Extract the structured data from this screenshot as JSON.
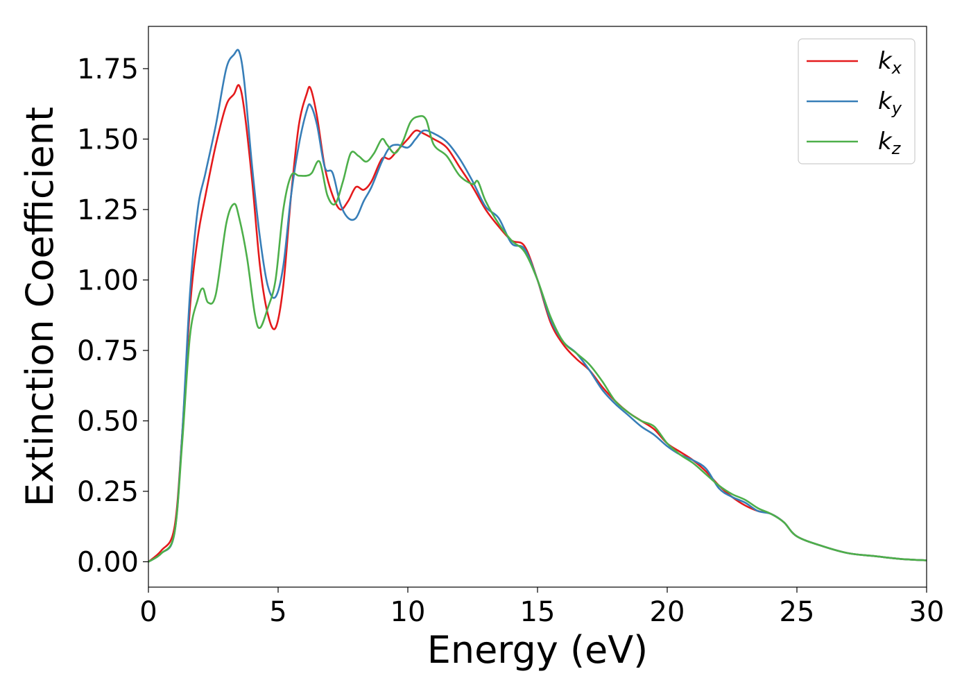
{
  "chart_data": {
    "type": "line",
    "title": "",
    "xlabel": "Energy (eV)",
    "ylabel": "Extinction Coefficient",
    "xlim": [
      0,
      30
    ],
    "ylim": [
      -0.09,
      1.9
    ],
    "xticks": [
      0,
      5,
      10,
      15,
      20,
      25,
      30
    ],
    "xtick_labels": [
      "0",
      "5",
      "10",
      "15",
      "20",
      "25",
      "30"
    ],
    "yticks": [
      0.0,
      0.25,
      0.5,
      0.75,
      1.0,
      1.25,
      1.5,
      1.75
    ],
    "ytick_labels": [
      "0.00",
      "0.25",
      "0.50",
      "0.75",
      "1.00",
      "1.25",
      "1.50",
      "1.75"
    ],
    "grid": false,
    "legend_position": "top-right",
    "series": [
      {
        "name": "k",
        "subscript": "x",
        "color": "#e41a1c",
        "x": [
          0,
          0.5,
          1.0,
          1.3,
          1.6,
          1.9,
          2.2,
          2.6,
          3.0,
          3.3,
          3.5,
          3.7,
          4.0,
          4.3,
          4.6,
          4.9,
          5.2,
          5.5,
          5.8,
          6.1,
          6.25,
          6.5,
          6.8,
          7.1,
          7.4,
          7.7,
          8.0,
          8.3,
          8.6,
          9.0,
          9.3,
          9.6,
          10.0,
          10.3,
          10.6,
          11.0,
          11.5,
          12.0,
          12.5,
          13.0,
          13.5,
          14.0,
          14.5,
          15.0,
          15.5,
          16.0,
          16.5,
          17.0,
          17.5,
          18.0,
          18.5,
          19.0,
          19.5,
          20.0,
          20.5,
          21.0,
          21.5,
          22.0,
          22.5,
          23.0,
          23.5,
          24.0,
          24.5,
          25.0,
          26.0,
          27.0,
          28.0,
          29.0,
          30.0
        ],
        "values": [
          0.0,
          0.04,
          0.12,
          0.45,
          0.9,
          1.15,
          1.3,
          1.48,
          1.62,
          1.66,
          1.69,
          1.6,
          1.35,
          1.05,
          0.88,
          0.83,
          0.98,
          1.3,
          1.55,
          1.66,
          1.68,
          1.58,
          1.4,
          1.3,
          1.25,
          1.28,
          1.33,
          1.32,
          1.35,
          1.43,
          1.43,
          1.46,
          1.5,
          1.53,
          1.52,
          1.5,
          1.47,
          1.4,
          1.33,
          1.25,
          1.19,
          1.14,
          1.12,
          1.0,
          0.85,
          0.77,
          0.72,
          0.68,
          0.62,
          0.57,
          0.53,
          0.5,
          0.47,
          0.42,
          0.39,
          0.36,
          0.32,
          0.27,
          0.23,
          0.2,
          0.18,
          0.17,
          0.14,
          0.09,
          0.055,
          0.03,
          0.02,
          0.01,
          0.005
        ]
      },
      {
        "name": "k",
        "subscript": "y",
        "color": "#377eb8",
        "x": [
          0,
          0.5,
          1.0,
          1.3,
          1.6,
          1.9,
          2.2,
          2.6,
          3.0,
          3.3,
          3.5,
          3.7,
          4.0,
          4.3,
          4.6,
          4.9,
          5.2,
          5.5,
          5.8,
          6.1,
          6.25,
          6.5,
          6.8,
          7.1,
          7.4,
          7.7,
          8.0,
          8.3,
          8.6,
          9.0,
          9.3,
          9.6,
          10.0,
          10.3,
          10.6,
          11.0,
          11.5,
          12.0,
          12.5,
          13.0,
          13.5,
          14.0,
          14.5,
          15.0,
          15.5,
          16.0,
          16.5,
          17.0,
          17.5,
          18.0,
          18.5,
          19.0,
          19.5,
          20.0,
          20.5,
          21.0,
          21.5,
          22.0,
          22.5,
          23.0,
          23.5,
          24.0,
          24.5,
          25.0,
          26.0,
          27.0,
          28.0,
          29.0,
          30.0
        ],
        "values": [
          0.0,
          0.03,
          0.1,
          0.45,
          0.95,
          1.25,
          1.38,
          1.55,
          1.75,
          1.8,
          1.81,
          1.7,
          1.4,
          1.15,
          0.98,
          0.94,
          1.05,
          1.3,
          1.48,
          1.6,
          1.62,
          1.55,
          1.4,
          1.38,
          1.27,
          1.22,
          1.22,
          1.28,
          1.33,
          1.42,
          1.47,
          1.48,
          1.47,
          1.5,
          1.53,
          1.52,
          1.49,
          1.43,
          1.35,
          1.26,
          1.22,
          1.13,
          1.11,
          1.0,
          0.86,
          0.78,
          0.74,
          0.68,
          0.61,
          0.56,
          0.52,
          0.48,
          0.45,
          0.41,
          0.38,
          0.36,
          0.33,
          0.26,
          0.23,
          0.21,
          0.18,
          0.17,
          0.14,
          0.09,
          0.055,
          0.03,
          0.02,
          0.01,
          0.005
        ]
      },
      {
        "name": "k",
        "subscript": "z",
        "color": "#4daf4a",
        "x": [
          0,
          0.5,
          1.0,
          1.3,
          1.6,
          1.9,
          2.1,
          2.3,
          2.6,
          3.0,
          3.3,
          3.5,
          3.8,
          4.1,
          4.3,
          4.6,
          4.9,
          5.2,
          5.5,
          5.8,
          6.1,
          6.3,
          6.6,
          6.9,
          7.2,
          7.5,
          7.8,
          8.1,
          8.4,
          8.7,
          9.0,
          9.2,
          9.5,
          9.8,
          10.1,
          10.4,
          10.7,
          11.0,
          11.5,
          12.0,
          12.5,
          12.7,
          13.0,
          13.5,
          14.0,
          14.5,
          15.0,
          15.5,
          16.0,
          16.5,
          17.0,
          17.5,
          18.0,
          18.5,
          19.0,
          19.5,
          20.0,
          20.5,
          21.0,
          21.5,
          22.0,
          22.5,
          23.0,
          23.5,
          24.0,
          24.5,
          25.0,
          26.0,
          27.0,
          28.0,
          29.0,
          30.0
        ],
        "values": [
          0.0,
          0.03,
          0.1,
          0.42,
          0.8,
          0.93,
          0.97,
          0.92,
          0.95,
          1.2,
          1.27,
          1.22,
          1.08,
          0.88,
          0.83,
          0.9,
          1.0,
          1.25,
          1.37,
          1.37,
          1.37,
          1.38,
          1.42,
          1.3,
          1.27,
          1.35,
          1.45,
          1.44,
          1.42,
          1.45,
          1.5,
          1.48,
          1.45,
          1.49,
          1.56,
          1.58,
          1.57,
          1.48,
          1.44,
          1.37,
          1.34,
          1.35,
          1.28,
          1.2,
          1.14,
          1.1,
          1.0,
          0.87,
          0.78,
          0.74,
          0.7,
          0.64,
          0.57,
          0.53,
          0.5,
          0.48,
          0.42,
          0.38,
          0.35,
          0.31,
          0.27,
          0.24,
          0.22,
          0.19,
          0.17,
          0.14,
          0.09,
          0.055,
          0.03,
          0.02,
          0.01,
          0.005
        ]
      }
    ]
  }
}
